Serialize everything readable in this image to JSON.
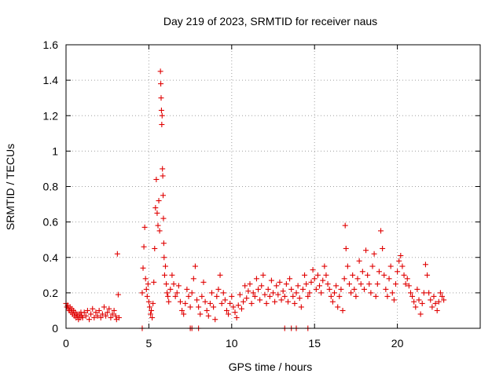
{
  "chart_data": {
    "type": "scatter",
    "title": "Day 219 of 2023, SRMTID for receiver naus",
    "xlabel": "GPS time / hours",
    "ylabel": "SRMTID / TECUs",
    "xlim": [
      0,
      25
    ],
    "ylim": [
      0,
      1.6
    ],
    "xticks": [
      0,
      5,
      10,
      15,
      20
    ],
    "xtick_labels": [
      "0",
      "5",
      "10",
      "15",
      "20"
    ],
    "yticks": [
      0,
      0.2,
      0.4,
      0.6,
      0.8,
      1.0,
      1.2,
      1.4,
      1.6
    ],
    "ytick_labels": [
      "0",
      "0.2",
      "0.4",
      "0.6",
      "0.8",
      "1",
      "1.2",
      "1.4",
      "1.6"
    ],
    "grid": true,
    "marker": "+",
    "color": "#e00000",
    "series": [
      {
        "name": "SRMTID",
        "x": [
          0.0,
          0.05,
          0.1,
          0.15,
          0.2,
          0.25,
          0.3,
          0.35,
          0.4,
          0.45,
          0.5,
          0.55,
          0.6,
          0.65,
          0.7,
          0.75,
          0.8,
          0.85,
          0.9,
          0.95,
          1.0,
          1.1,
          1.2,
          1.3,
          1.4,
          1.5,
          1.6,
          1.7,
          1.8,
          1.9,
          2.0,
          2.1,
          2.2,
          2.3,
          2.4,
          2.5,
          2.6,
          2.7,
          2.8,
          2.9,
          3.0,
          3.05,
          3.1,
          3.15,
          3.2,
          4.6,
          4.65,
          4.7,
          4.75,
          4.8,
          4.85,
          4.9,
          4.95,
          5.0,
          5.05,
          5.1,
          5.15,
          5.2,
          5.25,
          5.3,
          5.35,
          5.4,
          5.45,
          5.5,
          5.55,
          5.6,
          5.65,
          5.7,
          5.72,
          5.74,
          5.76,
          5.78,
          5.8,
          5.82,
          5.84,
          5.86,
          5.88,
          5.9,
          5.92,
          5.95,
          6.0,
          6.05,
          6.1,
          6.15,
          6.2,
          6.3,
          6.4,
          6.5,
          6.6,
          6.7,
          6.8,
          6.9,
          7.0,
          7.1,
          7.2,
          7.3,
          7.4,
          7.5,
          7.6,
          7.7,
          7.8,
          7.9,
          8.0,
          8.1,
          8.2,
          8.3,
          8.4,
          8.5,
          8.6,
          8.7,
          8.8,
          8.9,
          9.0,
          9.1,
          9.2,
          9.3,
          9.4,
          9.5,
          9.6,
          9.7,
          9.8,
          9.9,
          10.0,
          10.1,
          10.2,
          10.3,
          10.4,
          10.5,
          10.6,
          10.7,
          10.8,
          10.9,
          11.0,
          11.1,
          11.2,
          11.3,
          11.4,
          11.5,
          11.6,
          11.7,
          11.8,
          11.9,
          12.0,
          12.1,
          12.2,
          12.3,
          12.4,
          12.5,
          12.6,
          12.7,
          12.8,
          12.9,
          13.0,
          13.1,
          13.2,
          13.3,
          13.4,
          13.5,
          13.6,
          13.7,
          13.8,
          13.9,
          14.0,
          14.1,
          14.2,
          14.3,
          14.4,
          14.5,
          14.6,
          14.7,
          14.8,
          14.9,
          15.0,
          15.1,
          15.2,
          15.3,
          15.4,
          15.5,
          15.6,
          15.7,
          15.8,
          15.9,
          16.0,
          16.1,
          16.2,
          16.3,
          16.4,
          16.5,
          16.6,
          16.7,
          16.8,
          16.85,
          16.9,
          17.0,
          17.1,
          17.2,
          17.3,
          17.4,
          17.5,
          17.6,
          17.7,
          17.8,
          17.9,
          18.0,
          18.1,
          18.2,
          18.3,
          18.4,
          18.5,
          18.6,
          18.7,
          18.8,
          18.9,
          19.0,
          19.1,
          19.2,
          19.3,
          19.4,
          19.5,
          19.6,
          19.7,
          19.8,
          19.9,
          20.0,
          20.1,
          20.2,
          20.3,
          20.4,
          20.5,
          20.6,
          20.7,
          20.8,
          20.9,
          21.0,
          21.1,
          21.2,
          21.3,
          21.4,
          21.5,
          21.6,
          21.7,
          21.8,
          21.9,
          22.0,
          22.1,
          22.2,
          22.3,
          22.4,
          22.5,
          22.6,
          22.7,
          22.8,
          4.6,
          7.5,
          7.6,
          8.0,
          13.2,
          13.6,
          13.9,
          14.6
        ],
        "y": [
          0.14,
          0.12,
          0.13,
          0.11,
          0.1,
          0.12,
          0.09,
          0.11,
          0.08,
          0.1,
          0.07,
          0.09,
          0.06,
          0.08,
          0.07,
          0.05,
          0.08,
          0.06,
          0.09,
          0.07,
          0.06,
          0.09,
          0.07,
          0.1,
          0.05,
          0.08,
          0.11,
          0.06,
          0.09,
          0.07,
          0.1,
          0.06,
          0.08,
          0.12,
          0.07,
          0.09,
          0.11,
          0.06,
          0.08,
          0.1,
          0.07,
          0.05,
          0.42,
          0.19,
          0.06,
          0.2,
          0.34,
          0.46,
          0.57,
          0.28,
          0.22,
          0.18,
          0.25,
          0.15,
          0.12,
          0.08,
          0.1,
          0.06,
          0.14,
          0.26,
          0.45,
          0.68,
          0.84,
          0.65,
          0.58,
          0.72,
          0.55,
          1.45,
          1.38,
          1.3,
          1.23,
          1.15,
          1.2,
          0.9,
          0.86,
          0.75,
          0.62,
          0.48,
          0.4,
          0.3,
          0.35,
          0.25,
          0.2,
          0.18,
          0.15,
          0.22,
          0.3,
          0.25,
          0.18,
          0.2,
          0.24,
          0.15,
          0.1,
          0.08,
          0.14,
          0.22,
          0.18,
          0.12,
          0.2,
          0.28,
          0.35,
          0.16,
          0.12,
          0.08,
          0.18,
          0.26,
          0.15,
          0.1,
          0.07,
          0.14,
          0.2,
          0.12,
          0.05,
          0.18,
          0.22,
          0.3,
          0.14,
          0.2,
          0.16,
          0.1,
          0.08,
          0.14,
          0.18,
          0.12,
          0.09,
          0.06,
          0.13,
          0.19,
          0.11,
          0.15,
          0.24,
          0.17,
          0.21,
          0.25,
          0.14,
          0.2,
          0.18,
          0.28,
          0.22,
          0.16,
          0.24,
          0.3,
          0.19,
          0.14,
          0.22,
          0.18,
          0.27,
          0.2,
          0.15,
          0.24,
          0.19,
          0.26,
          0.16,
          0.21,
          0.18,
          0.25,
          0.15,
          0.28,
          0.22,
          0.18,
          0.14,
          0.2,
          0.24,
          0.17,
          0.12,
          0.22,
          0.3,
          0.25,
          0.18,
          0.2,
          0.26,
          0.33,
          0.28,
          0.22,
          0.3,
          0.24,
          0.2,
          0.27,
          0.35,
          0.3,
          0.25,
          0.22,
          0.18,
          0.15,
          0.2,
          0.24,
          0.12,
          0.18,
          0.22,
          0.1,
          0.28,
          0.58,
          0.45,
          0.35,
          0.25,
          0.2,
          0.3,
          0.22,
          0.18,
          0.28,
          0.38,
          0.25,
          0.32,
          0.22,
          0.44,
          0.3,
          0.25,
          0.2,
          0.35,
          0.42,
          0.18,
          0.25,
          0.32,
          0.55,
          0.45,
          0.3,
          0.22,
          0.18,
          0.28,
          0.35,
          0.2,
          0.16,
          0.25,
          0.32,
          0.38,
          0.41,
          0.35,
          0.3,
          0.25,
          0.28,
          0.24,
          0.2,
          0.18,
          0.15,
          0.12,
          0.22,
          0.16,
          0.08,
          0.14,
          0.2,
          0.36,
          0.3,
          0.2,
          0.16,
          0.12,
          0.18,
          0.14,
          0.1,
          0.15,
          0.2,
          0.18,
          0.16,
          0.0,
          0.0,
          0.0,
          0.0,
          0.0,
          0.0,
          0.0,
          0.0
        ]
      }
    ]
  }
}
